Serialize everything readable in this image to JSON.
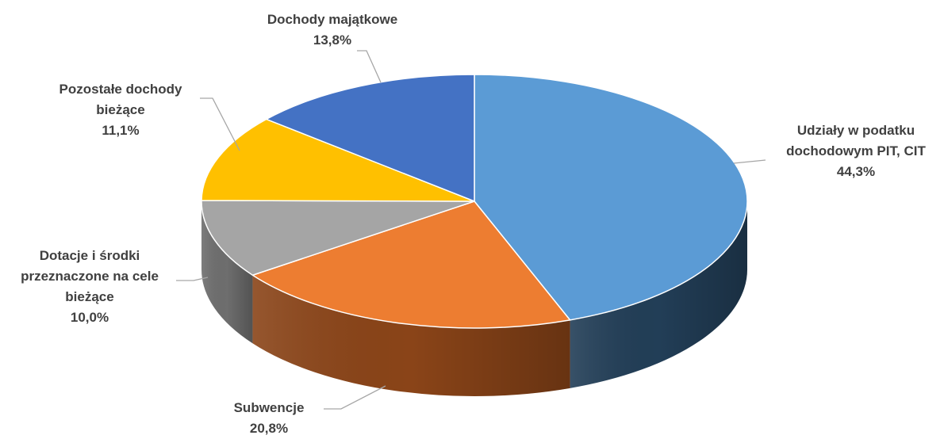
{
  "chart_data": {
    "type": "pie",
    "title": "",
    "slices": [
      {
        "label_lines": [
          "Udziały w podatku",
          "dochodowym PIT, CIT"
        ],
        "value_label": "44,3%",
        "value": 44.3,
        "color": "#5B9BD5",
        "side_color": "#223E57"
      },
      {
        "label_lines": [
          "Subwencje"
        ],
        "value_label": "20,8%",
        "value": 20.8,
        "color": "#ED7D31",
        "side_color": "#8A4418"
      },
      {
        "label_lines": [
          "Dotacje i środki",
          "przeznaczone na cele",
          "bieżące"
        ],
        "value_label": "10,0%",
        "value": 10.0,
        "color": "#A5A5A5",
        "side_color": "#6E6E6E"
      },
      {
        "label_lines": [
          "Pozostałe dochody",
          "bieżące"
        ],
        "value_label": "11,1%",
        "value": 11.1,
        "color": "#FFC000",
        "side_color": "#9A7400"
      },
      {
        "label_lines": [
          "Dochody majątkowe"
        ],
        "value_label": "13,8%",
        "value": 13.8,
        "color": "#4472C4",
        "side_color": "#27457A"
      }
    ],
    "start_angle": "12 o'clock",
    "direction": "clockwise",
    "style": "3d-pie",
    "legend": "none",
    "leader_line_color": "#A6A6A6",
    "label_color": "#404040"
  }
}
